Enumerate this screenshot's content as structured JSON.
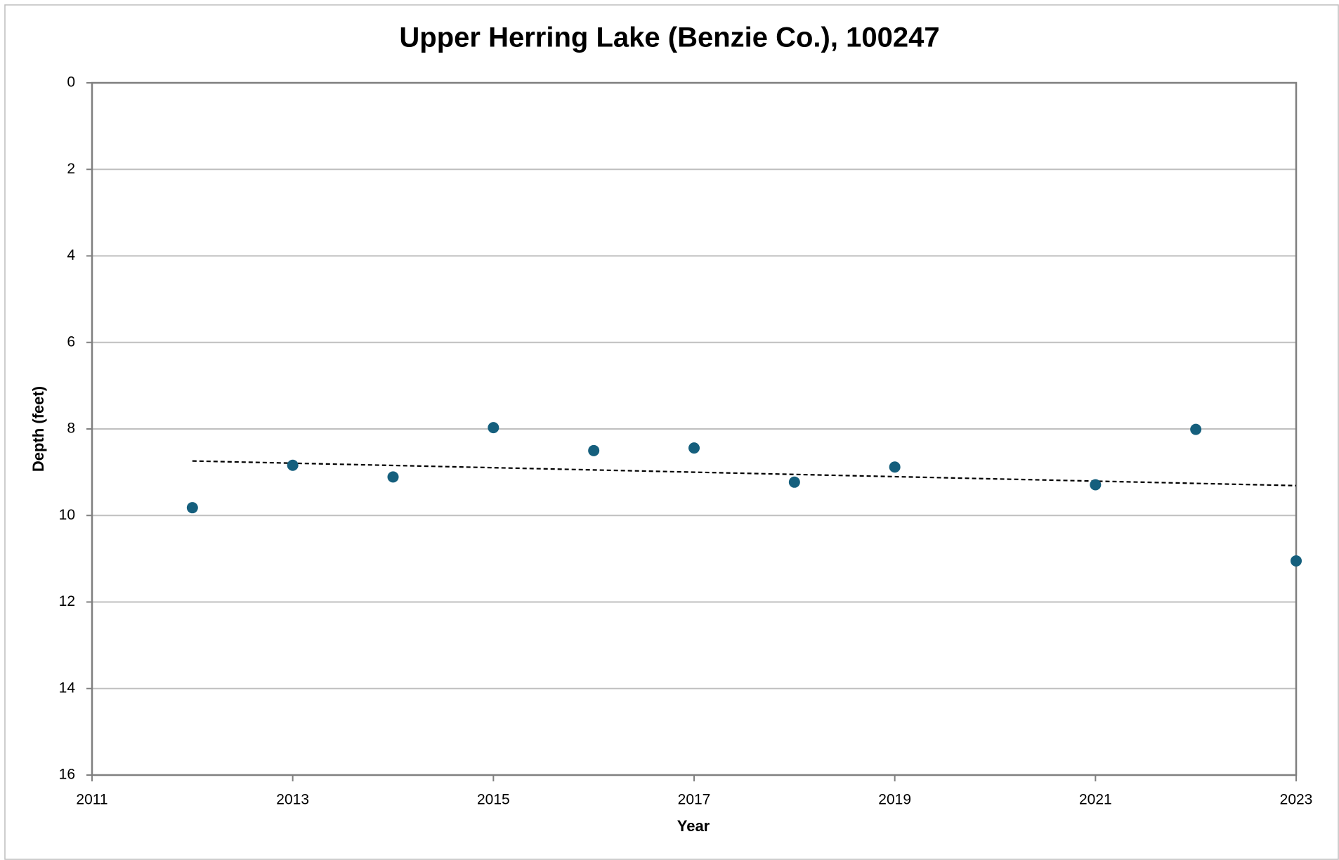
{
  "chart_data": {
    "type": "scatter",
    "title": "Upper Herring Lake (Benzie Co.), 100247",
    "x_label": "Year",
    "y_label": "Depth (feet)",
    "x": [
      2012,
      2013,
      2014,
      2015,
      2016,
      2017,
      2018,
      2019,
      2021,
      2022,
      2023
    ],
    "values": [
      9.82,
      8.84,
      9.11,
      7.97,
      8.5,
      8.44,
      9.23,
      8.88,
      9.29,
      8.01,
      11.05
    ],
    "color": "#155f7d",
    "trendline": {
      "x": [
        2012,
        2023
      ],
      "values": [
        8.74,
        9.31
      ],
      "color": "#000000",
      "dashed": true
    },
    "xlim": [
      2011,
      2023
    ],
    "xticks": [
      2011,
      2013,
      2015,
      2017,
      2019,
      2021,
      2023
    ],
    "ylim": [
      0,
      16
    ],
    "yticks": [
      0,
      2,
      4,
      6,
      8,
      10,
      12,
      14,
      16
    ],
    "y_reversed": true,
    "grid": true
  }
}
